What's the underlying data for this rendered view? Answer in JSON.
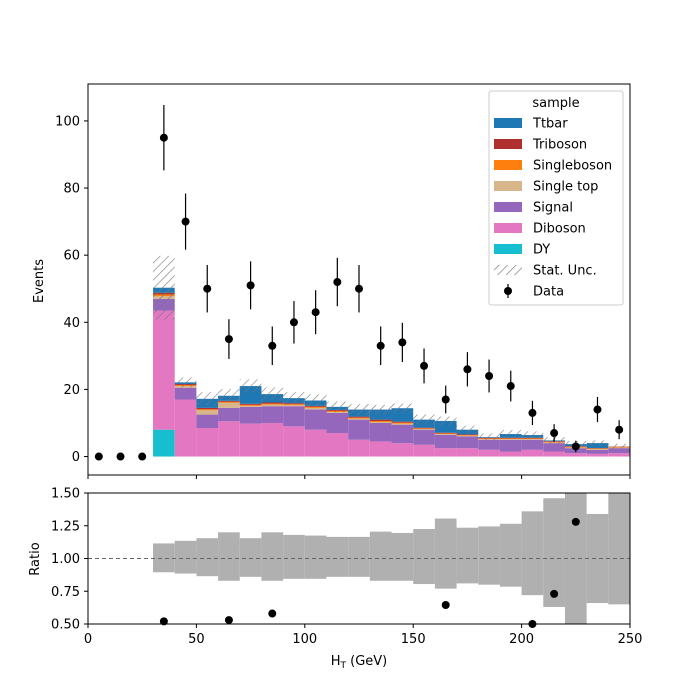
{
  "chart_data": [
    {
      "type": "bar",
      "subtype": "stacked-histogram-with-data-points",
      "xlim": [
        0,
        250
      ],
      "ylim": [
        -5.5,
        111
      ],
      "ylabel": "Events",
      "xticks": [
        0,
        50,
        100,
        150,
        200,
        250
      ],
      "yticks": [
        0,
        20,
        40,
        60,
        80,
        100
      ],
      "ytick_labels": [
        "0",
        "20",
        "40",
        "60",
        "80",
        "100"
      ],
      "bin_edges": [
        0,
        10,
        20,
        30,
        40,
        50,
        60,
        70,
        80,
        90,
        100,
        110,
        120,
        130,
        140,
        150,
        160,
        170,
        180,
        190,
        200,
        210,
        220,
        230,
        240,
        250
      ],
      "categories": [
        "0-10",
        "10-20",
        "20-30",
        "30-40",
        "40-50",
        "50-60",
        "60-70",
        "70-80",
        "80-90",
        "90-100",
        "100-110",
        "110-120",
        "120-130",
        "130-140",
        "140-150",
        "150-160",
        "160-170",
        "170-180",
        "180-190",
        "190-200",
        "200-210",
        "210-220",
        "220-230",
        "230-240",
        "240-250"
      ],
      "series": [
        {
          "name": "DY",
          "color": "#17becf",
          "values": [
            0,
            0,
            0,
            8,
            0,
            0,
            0,
            0,
            0,
            0,
            0,
            0,
            0,
            0,
            0,
            0,
            0,
            0,
            0,
            0,
            0,
            0,
            0,
            0,
            0
          ]
        },
        {
          "name": "Diboson",
          "color": "#e377c2",
          "values": [
            0,
            0,
            0,
            35.5,
            17,
            8.5,
            10.5,
            9.8,
            10,
            9,
            8,
            7,
            5,
            4.5,
            4,
            3.5,
            2.5,
            2.5,
            2,
            1.5,
            2,
            1.5,
            1,
            0.8,
            1
          ]
        },
        {
          "name": "Signal",
          "color": "#9467bd",
          "values": [
            0,
            0,
            0,
            3.5,
            3.5,
            4,
            4,
            5,
            5,
            6,
            6,
            6,
            6,
            5.5,
            5.5,
            4.5,
            4,
            3.5,
            3,
            3.5,
            3,
            2.5,
            1.5,
            1.2,
            1.5
          ]
        },
        {
          "name": "Single top",
          "color": "#d6b68a",
          "values": [
            0,
            0,
            0,
            0.8,
            0.5,
            1.3,
            1.5,
            0.3,
            0.5,
            0.3,
            0.5,
            0.3,
            0.3,
            0.3,
            0.3,
            0.2,
            0.2,
            0.2,
            0.2,
            0.2,
            0.2,
            0.2,
            0.2,
            0.2,
            0.2
          ]
        },
        {
          "name": "Singleboson",
          "color": "#ff7f0e",
          "values": [
            0,
            0,
            0,
            0.5,
            0.3,
            0.3,
            0.3,
            0.3,
            0.3,
            0.3,
            0.3,
            0.3,
            0.3,
            0.3,
            0.3,
            0.2,
            0.2,
            0.2,
            0.2,
            0.2,
            0.2,
            0.2,
            0.2,
            0.2,
            0.2
          ]
        },
        {
          "name": "Triboson",
          "color": "#b03030",
          "values": [
            0,
            0,
            0,
            0.5,
            0.3,
            0.4,
            0.3,
            0.3,
            0.3,
            0.3,
            0.3,
            0.3,
            0.3,
            0.4,
            0.3,
            0.2,
            0.2,
            0.2,
            0.2,
            0.2,
            0.2,
            0.2,
            0.2,
            0.1,
            0.1
          ]
        },
        {
          "name": "Ttbar",
          "color": "#1f77b4",
          "values": [
            0,
            0,
            0,
            1.5,
            0.5,
            2.7,
            1.5,
            5.3,
            2.5,
            1.5,
            1.6,
            0.9,
            2.1,
            3,
            4,
            2.4,
            3.5,
            1.4,
            0.2,
            1.1,
            0.8,
            0.2,
            0.6,
            1.5,
            0
          ]
        }
      ],
      "stat_unc": [
        0,
        0,
        0,
        9.5,
        1.5,
        2,
        2,
        2,
        2,
        1.8,
        1.8,
        1.6,
        1.6,
        1.4,
        1.4,
        1.5,
        1.3,
        1.2,
        1.1,
        1.2,
        1.1,
        1,
        0.9,
        0.8,
        0.8
      ],
      "legend": {
        "title": "sample",
        "location": "upper-right",
        "entries": [
          "Ttbar",
          "Triboson",
          "Singleboson",
          "Single top",
          "Signal",
          "Diboson",
          "DY",
          "Stat. Unc.",
          "Data"
        ]
      },
      "data_points": {
        "name": "Data",
        "x": [
          5,
          15,
          25,
          35,
          45,
          55,
          65,
          75,
          85,
          95,
          105,
          115,
          125,
          135,
          145,
          155,
          165,
          175,
          185,
          195,
          205,
          215,
          225,
          235,
          245
        ],
        "y": [
          0,
          0,
          0,
          95,
          70,
          50,
          35,
          51,
          33,
          40,
          43,
          52,
          50,
          33,
          34,
          27,
          17,
          26,
          24,
          21,
          13,
          7,
          3,
          14,
          8
        ]
      }
    },
    {
      "type": "scatter",
      "subtype": "ratio-panel",
      "xlim": [
        0,
        250
      ],
      "ylim": [
        0.5,
        1.5
      ],
      "xlabel_main": "H",
      "xlabel_sub": "T",
      "xlabel_unit": " (GeV)",
      "ylabel": "Ratio",
      "xticks": [
        0,
        50,
        100,
        150,
        200,
        250
      ],
      "xtick_labels": [
        "0",
        "50",
        "100",
        "150",
        "200",
        "250"
      ],
      "yticks": [
        0.5,
        0.75,
        1.0,
        1.25,
        1.5
      ],
      "ytick_labels": [
        "0.50",
        "0.75",
        "1.00",
        "1.25",
        "1.50"
      ],
      "reference_line": 1.0,
      "unc_band": {
        "low": [
          null,
          null,
          null,
          0.895,
          0.885,
          0.865,
          0.83,
          0.86,
          0.83,
          0.845,
          0.845,
          0.86,
          0.86,
          0.83,
          0.83,
          0.805,
          0.77,
          0.81,
          0.8,
          0.785,
          0.72,
          0.63,
          0.5,
          0.66,
          0.65
        ],
        "high": [
          null,
          null,
          null,
          1.115,
          1.135,
          1.155,
          1.2,
          1.155,
          1.2,
          1.18,
          1.175,
          1.165,
          1.165,
          1.205,
          1.195,
          1.225,
          1.305,
          1.235,
          1.245,
          1.265,
          1.36,
          1.46,
          1.5,
          1.34,
          1.5
        ]
      },
      "points": {
        "x": [
          35,
          65,
          85,
          165,
          205,
          215,
          225
        ],
        "y": [
          0.52,
          0.53,
          0.58,
          0.645,
          0.5,
          0.73,
          1.28
        ]
      }
    }
  ]
}
